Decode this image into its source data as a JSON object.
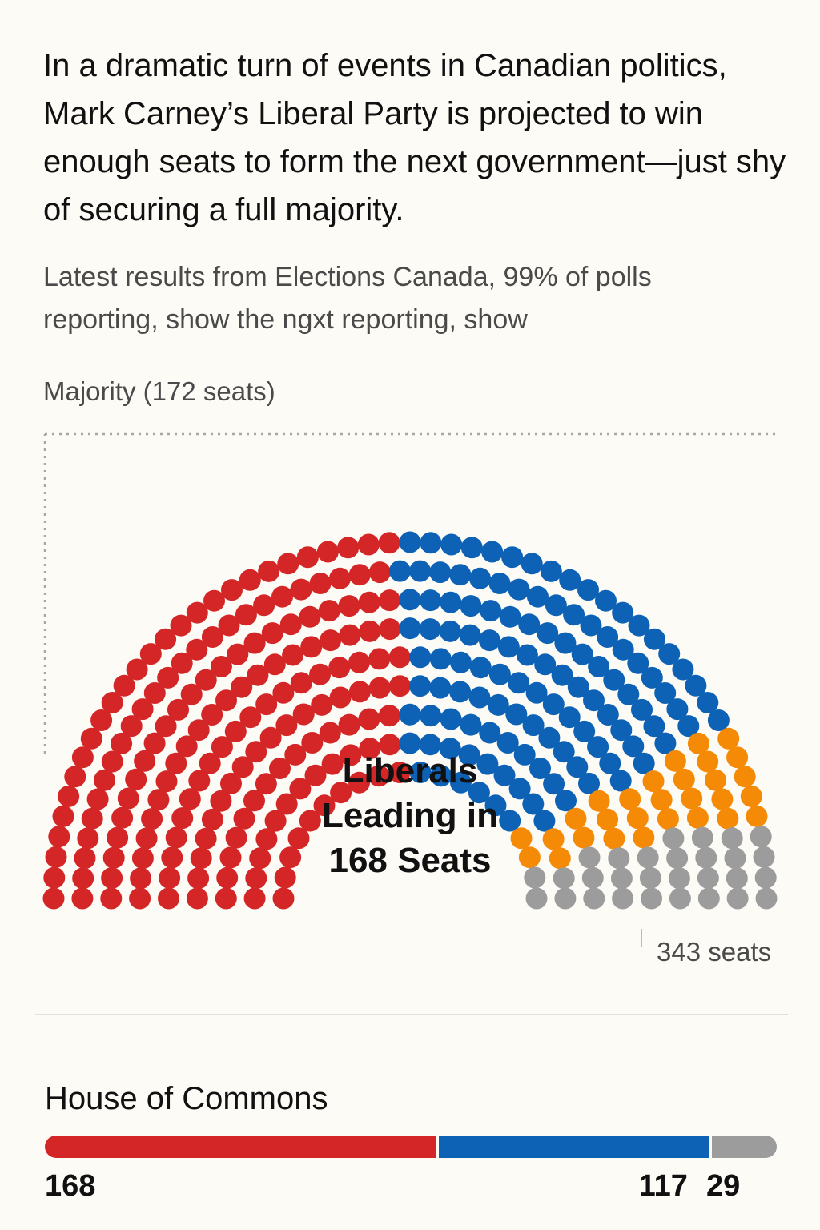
{
  "headline": "In a dramatic turn of events in Canadian politics, Mark Carney’s Liberal Party is projected to win enough seats to form the next government—just shy of securing a full majority.",
  "dek": "Latest results from Elections Canada, 99% of polls reporting, show the ngxt reporting, show",
  "colors": {
    "liberal": "#d42626",
    "conservative": "#0e62b5",
    "orange": "#f58a07",
    "other": "#9c9c9c",
    "background": "#fcfbf6"
  },
  "chart_data": [
    {
      "type": "hemicycle",
      "majority_label": "Majority (172 seats)",
      "center_label_lines": [
        "Liberals",
        "Leading in",
        "168 Seats"
      ],
      "total_label": "343 seats",
      "total_seats": 343,
      "majority": 172,
      "parties": [
        {
          "key": "liberal",
          "seats": 168,
          "color": "#d42626"
        },
        {
          "key": "conservative",
          "seats": 117,
          "color": "#0e62b5"
        },
        {
          "key": "orange",
          "seats": 29,
          "color": "#f58a07"
        },
        {
          "key": "other",
          "seats": 29,
          "color": "#9c9c9c"
        }
      ]
    },
    {
      "type": "bar",
      "title": "House of Commons",
      "stacked": true,
      "segments": [
        {
          "value": 168,
          "label": "168",
          "color": "#d42626"
        },
        {
          "value": 117,
          "label": "117",
          "color": "#0e62b5"
        },
        {
          "value": 29,
          "label": "29",
          "color": "#9c9c9c"
        }
      ]
    }
  ]
}
